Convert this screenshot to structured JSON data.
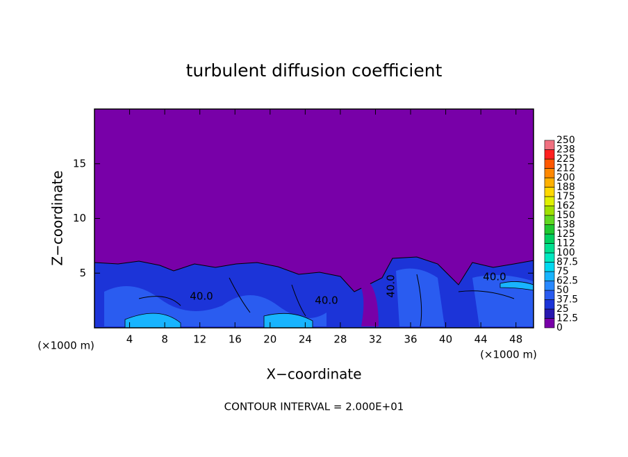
{
  "chart_data": {
    "type": "contour",
    "title": "turbulent diffusion coefficient",
    "x_label": "X−coordinate",
    "y_label": "Z−coordinate",
    "x_unit_label": "(×1000 m)",
    "y_unit_label": "(×1000 m)",
    "annotation": "CONTOUR INTERVAL = 2.000E+01",
    "xlim": [
      0,
      50
    ],
    "xticks": [
      4,
      8,
      12,
      16,
      20,
      24,
      28,
      32,
      36,
      40,
      44,
      48
    ],
    "ylim": [
      0,
      20
    ],
    "yticks": [
      5,
      10,
      15
    ],
    "contour_labels": [
      "40.0",
      "40.0",
      "40.0",
      "40.0"
    ],
    "colorbar": {
      "levels": [
        0,
        12.5,
        25,
        37.5,
        50,
        62.5,
        75,
        87.5,
        100,
        {
          "value": 112.5,
          "label": "112"
        },
        125,
        {
          "value": 137.5,
          "label": "138"
        },
        150,
        {
          "value": 162.5,
          "label": "162"
        },
        175,
        {
          "value": 187.5,
          "label": "188"
        },
        200,
        {
          "value": 212.5,
          "label": "212"
        },
        225,
        {
          "value": 237.5,
          "label": "238"
        },
        250
      ],
      "colors": [
        "#7800a8",
        "#2818b0",
        "#1c34d8",
        "#2a5cf0",
        "#2888ff",
        "#18b4ff",
        "#00d8f0",
        "#00e8c0",
        "#00e090",
        "#00d060",
        "#20c830",
        "#60d820",
        "#a0e000",
        "#e0f000",
        "#ffd800",
        "#ffb000",
        "#ff8800",
        "#ff5800",
        "#ff2020",
        "#f07080"
      ]
    }
  }
}
